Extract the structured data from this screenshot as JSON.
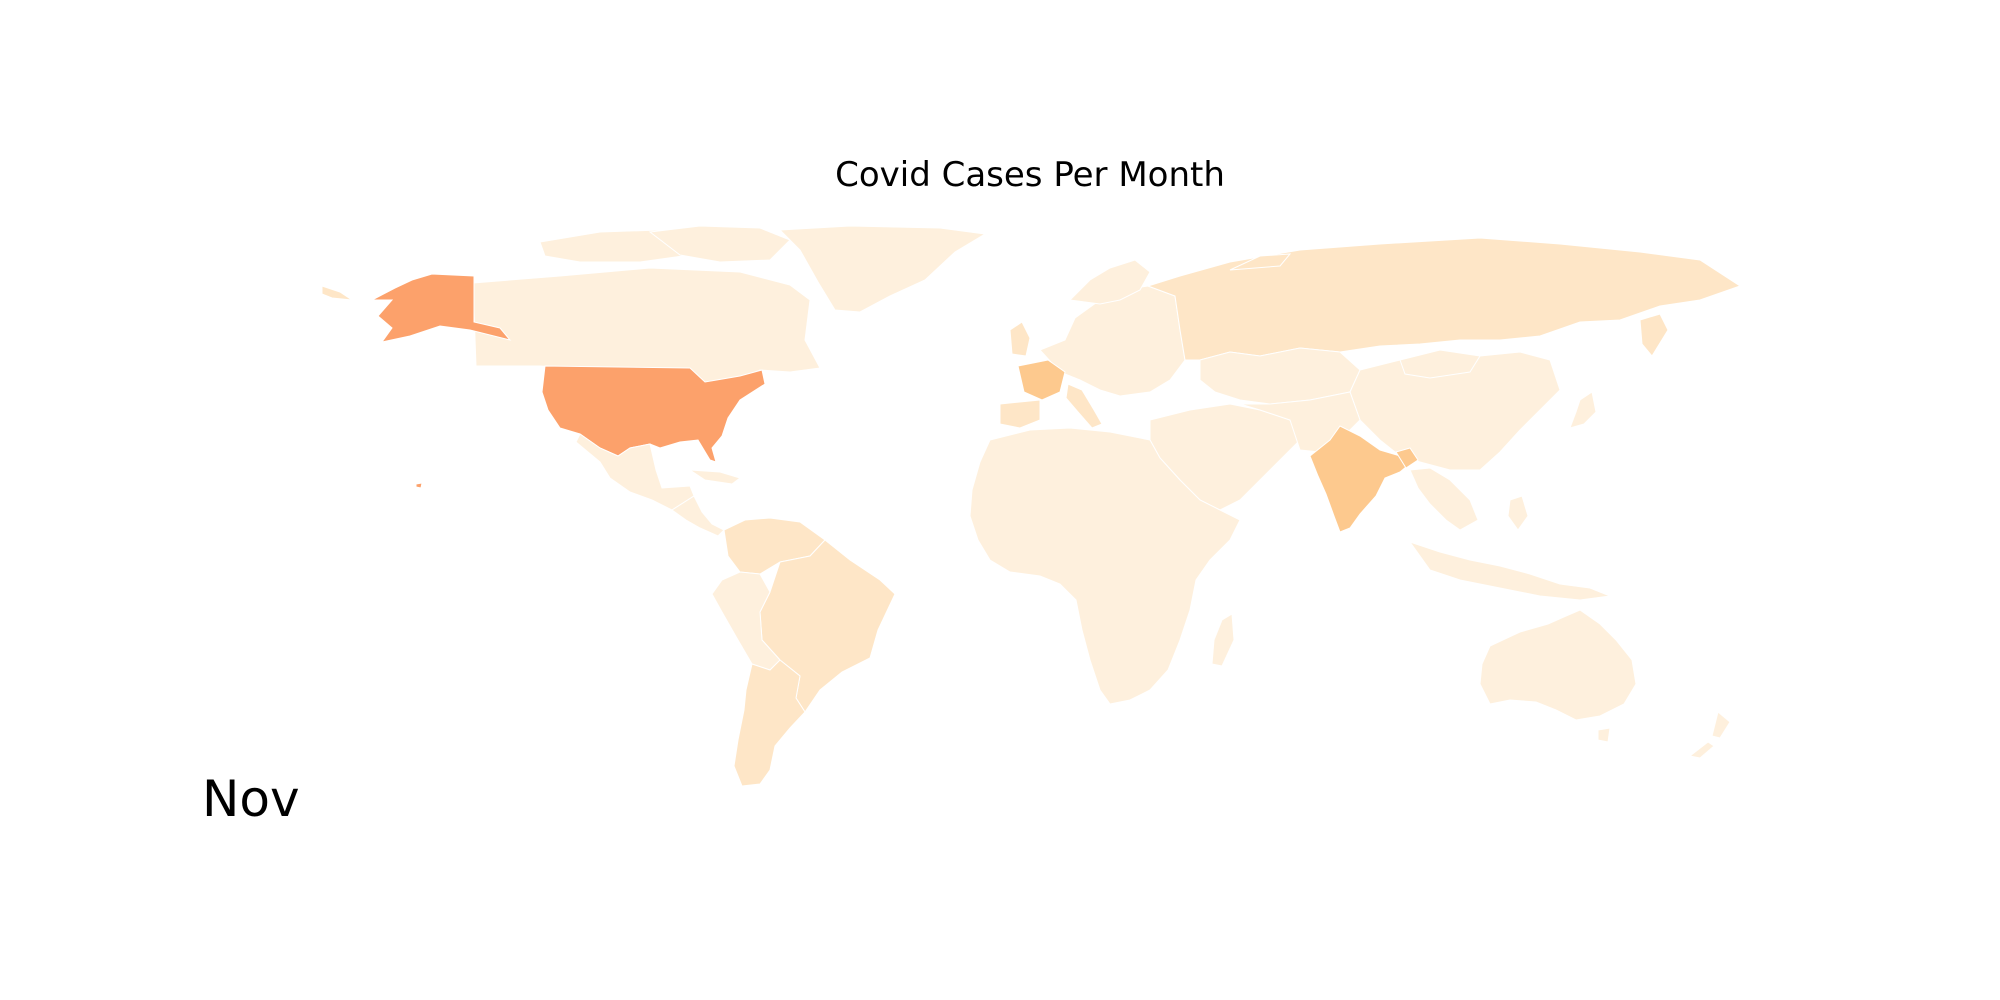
{
  "title": "Covid Cases Per Month",
  "month": "Nov",
  "colors": {
    "background": "#ffffff",
    "border": "#ffffff",
    "highest": "#fca16b",
    "high": "#fdc98e",
    "medium": "#fee6c7",
    "low": "#fef0dd"
  },
  "chart_data": {
    "type": "choropleth",
    "regions": [
      {
        "name": "United States",
        "level": "highest"
      },
      {
        "name": "India",
        "level": "high"
      },
      {
        "name": "France",
        "level": "high"
      },
      {
        "name": "Brazil",
        "level": "medium"
      },
      {
        "name": "Russia",
        "level": "medium"
      },
      {
        "name": "United Kingdom",
        "level": "medium"
      },
      {
        "name": "Italy",
        "level": "medium"
      },
      {
        "name": "Spain",
        "level": "medium"
      },
      {
        "name": "Argentina",
        "level": "medium"
      },
      {
        "name": "Colombia",
        "level": "medium"
      },
      {
        "name": "Canada",
        "level": "low"
      },
      {
        "name": "Mexico",
        "level": "low"
      },
      {
        "name": "China",
        "level": "low"
      },
      {
        "name": "Australia",
        "level": "low"
      },
      {
        "name": "Greenland",
        "level": "low"
      },
      {
        "name": "Africa",
        "level": "low"
      },
      {
        "name": "Kazakhstan",
        "level": "low"
      },
      {
        "name": "Middle East",
        "level": "low"
      },
      {
        "name": "Southeast Asia",
        "level": "low"
      },
      {
        "name": "Rest of South America",
        "level": "low"
      }
    ]
  }
}
